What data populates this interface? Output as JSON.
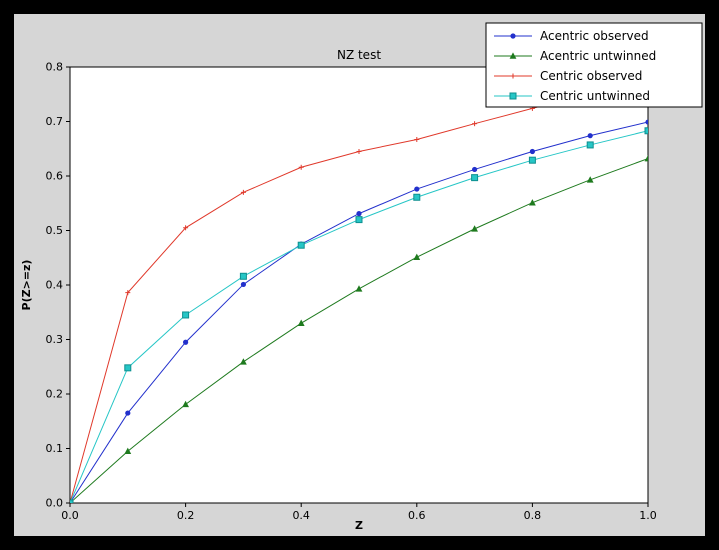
{
  "window": {
    "background": "#000000",
    "figure_background": "#d6d6d6",
    "axes_background": "#ffffff"
  },
  "chart_data": {
    "type": "line",
    "title": "NZ test",
    "xlabel": "Z",
    "ylabel": "P(Z>=z)",
    "xlim": [
      0.0,
      1.0
    ],
    "ylim": [
      0.0,
      0.8
    ],
    "xticks": [
      0.0,
      0.2,
      0.4,
      0.6,
      0.8,
      1.0
    ],
    "yticks": [
      0.0,
      0.1,
      0.2,
      0.3,
      0.4,
      0.5,
      0.6,
      0.7,
      0.8
    ],
    "grid": false,
    "legend_position": "upper right",
    "x": [
      0.0,
      0.1,
      0.2,
      0.3,
      0.4,
      0.5,
      0.6,
      0.7,
      0.8,
      0.9,
      1.0
    ],
    "series": [
      {
        "name": "Acentric observed",
        "color": "#2230cc",
        "marker": "circle",
        "values": [
          0.0,
          0.165,
          0.295,
          0.401,
          0.475,
          0.531,
          0.576,
          0.612,
          0.645,
          0.674,
          0.699
        ]
      },
      {
        "name": "Acentric untwinned",
        "color": "#1e7a1e",
        "marker": "triangle",
        "values": [
          0.0,
          0.095,
          0.181,
          0.259,
          0.33,
          0.393,
          0.451,
          0.503,
          0.551,
          0.593,
          0.632
        ]
      },
      {
        "name": "Centric observed",
        "color": "#e0382a",
        "marker": "plus",
        "values": [
          0.0,
          0.386,
          0.505,
          0.57,
          0.616,
          0.645,
          0.667,
          0.696,
          0.724,
          0.752,
          0.778
        ]
      },
      {
        "name": "Centric untwinned",
        "color": "#26c6c6",
        "marker": "square",
        "marker_edge": "#0d8f8f",
        "values": [
          0.0,
          0.248,
          0.345,
          0.416,
          0.473,
          0.52,
          0.561,
          0.597,
          0.629,
          0.657,
          0.683
        ]
      }
    ]
  }
}
